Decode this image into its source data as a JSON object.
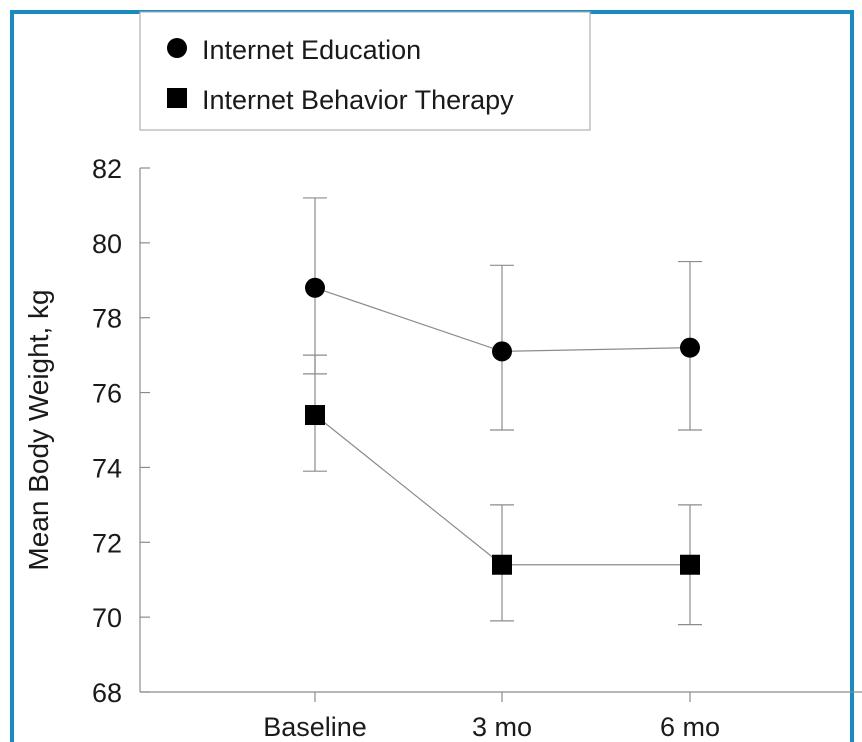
{
  "chart_data": {
    "type": "line",
    "title": "",
    "xlabel": "",
    "ylabel": "Mean Body Weight, kg",
    "categories": [
      "Baseline",
      "3 mo",
      "6 mo"
    ],
    "ylim": [
      68,
      82
    ],
    "yticks": [
      "68",
      "70",
      "72",
      "74",
      "76",
      "78",
      "80",
      "82"
    ],
    "grid": false,
    "legend_position": "top-left",
    "series": [
      {
        "name": "Internet Education",
        "marker": "circle",
        "values": [
          78.8,
          77.1,
          77.2
        ],
        "error_low": [
          76.5,
          75.0,
          75.0
        ],
        "error_high": [
          81.2,
          79.4,
          79.5
        ]
      },
      {
        "name": "Internet Behavior Therapy",
        "marker": "square",
        "values": [
          75.4,
          71.4,
          71.4
        ],
        "error_low": [
          73.9,
          69.9,
          69.8
        ],
        "error_high": [
          77.0,
          73.0,
          73.0
        ]
      }
    ]
  },
  "colors": {
    "border": "#1a8bbf",
    "marker": "#000000",
    "line": "#8c8c8c",
    "errorbar": "#8c8c8c",
    "axis": "#8c8c8c"
  }
}
